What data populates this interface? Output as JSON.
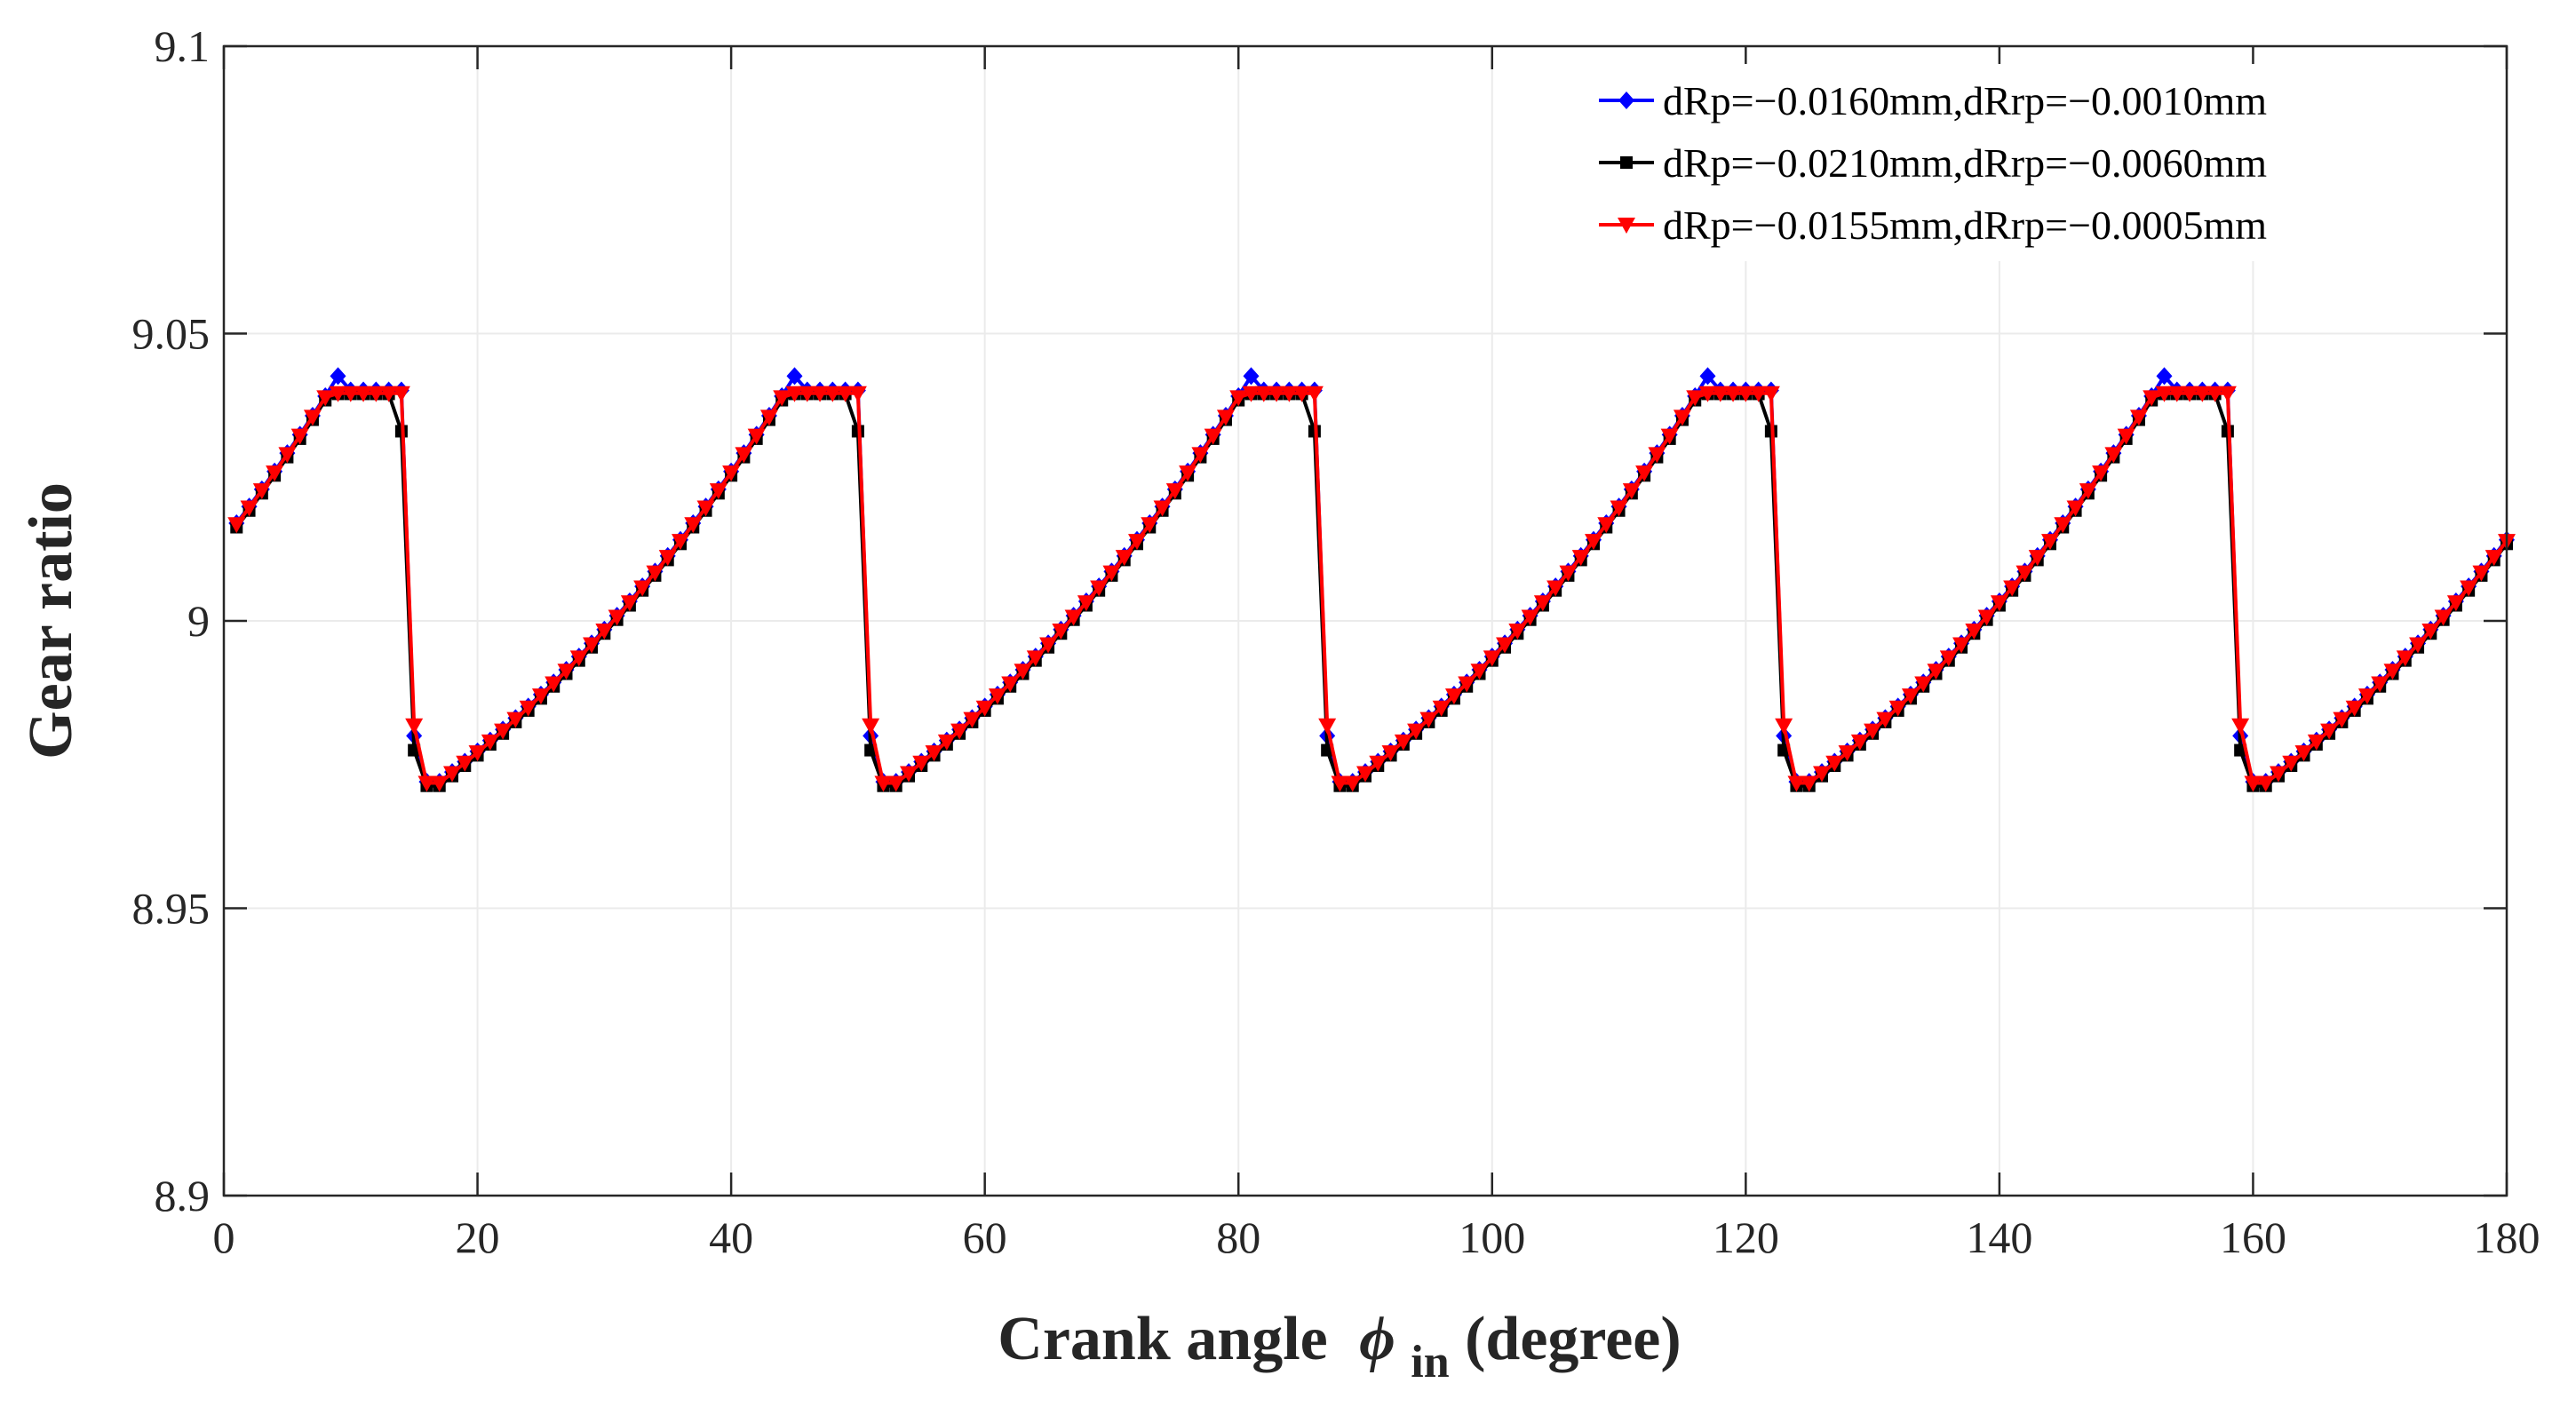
{
  "chart_data": {
    "type": "line",
    "title": "",
    "xlabel": "Crank angle",
    "xlabel_symbol": "ϕ",
    "xlabel_subscript": "in",
    "xlabel_suffix": "(degree)",
    "ylabel": "Gear ratio",
    "xlim": [
      0,
      180
    ],
    "ylim": [
      8.9,
      9.1
    ],
    "xticks": [
      0,
      20,
      40,
      60,
      80,
      100,
      120,
      140,
      160,
      180
    ],
    "yticks": [
      8.9,
      8.95,
      9,
      9.05,
      9.1
    ],
    "xtick_labels": [
      "0",
      "20",
      "40",
      "60",
      "80",
      "100",
      "120",
      "140",
      "160",
      "180"
    ],
    "ytick_labels": [
      "8.9",
      "8.95",
      "9",
      "9.05",
      "9.1"
    ],
    "grid": true,
    "legend_position": "top-right",
    "period_deg": 36,
    "x_step_deg": 1,
    "x_start": 1,
    "x_end": 180,
    "cycle_description": "Each 36-degree cycle: ratio falls sharply from ~9.040 to ~8.972 at about 16 deg (+36k), then rises along a convex curve back to ~9.040 at 51 deg (+36k).",
    "series": [
      {
        "name": "dRp=−0.0160mm,dRrp=−0.0010mm",
        "color": "#0000ff",
        "marker": "diamond",
        "cycle_values": [
          8.972,
          8.9737,
          8.9755,
          8.9773,
          8.9792,
          8.9811,
          8.9831,
          8.9851,
          8.9872,
          8.9893,
          8.9915,
          8.9938,
          8.9961,
          8.9985,
          9.0009,
          9.0034,
          9.006,
          9.0086,
          9.0113,
          9.0141,
          9.017,
          9.0199,
          9.0229,
          9.026,
          9.0292,
          9.0324,
          9.0357,
          9.0391,
          9.0426,
          9.0401,
          9.0401,
          9.0401,
          9.0401,
          9.0401,
          8.98,
          8.972
        ]
      },
      {
        "name": "dRp=−0.0210mm,dRrp=−0.0060mm",
        "color": "#000000",
        "marker": "square",
        "cycle_values": [
          8.9713,
          8.973,
          8.9748,
          8.9766,
          8.9785,
          8.9804,
          8.9824,
          8.9844,
          8.9865,
          8.9886,
          8.9908,
          8.9931,
          8.9954,
          8.9978,
          9.0002,
          9.0027,
          9.0053,
          9.0079,
          9.0106,
          9.0134,
          9.0163,
          9.0192,
          9.0222,
          9.0253,
          9.0285,
          9.0317,
          9.035,
          9.0384,
          9.0395,
          9.0395,
          9.0395,
          9.0395,
          9.0395,
          9.033,
          8.9775,
          8.9713
        ]
      },
      {
        "name": "dRp=−0.0155mm,dRrp=−0.0005mm",
        "color": "#ff0000",
        "marker": "triangle-down",
        "cycle_values": [
          8.9718,
          8.9735,
          8.9753,
          8.9771,
          8.979,
          8.9809,
          8.9829,
          8.9849,
          8.987,
          8.9891,
          8.9913,
          8.9936,
          8.9959,
          8.9983,
          9.0007,
          9.0032,
          9.0058,
          9.0084,
          9.0111,
          9.0139,
          9.0168,
          9.0197,
          9.0227,
          9.0258,
          9.029,
          9.0322,
          9.0355,
          9.0389,
          9.0396,
          9.0396,
          9.0396,
          9.0396,
          9.0396,
          9.0396,
          8.9818,
          8.9718
        ]
      }
    ]
  }
}
